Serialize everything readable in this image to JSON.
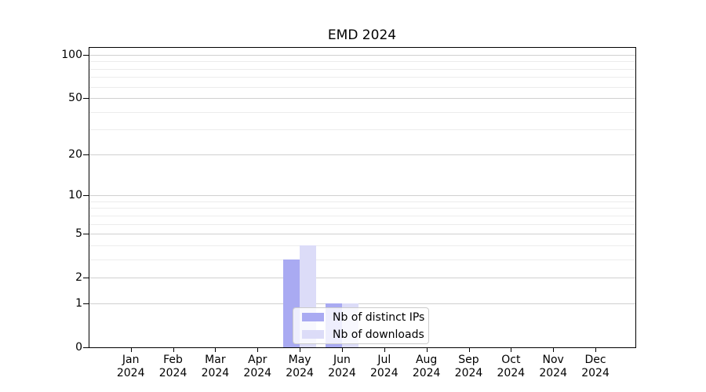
{
  "chart_data": {
    "type": "bar",
    "title": "EMD 2024",
    "categories": [
      "Jan",
      "Feb",
      "Mar",
      "Apr",
      "May",
      "Jun",
      "Jul",
      "Aug",
      "Sep",
      "Oct",
      "Nov",
      "Dec"
    ],
    "category_year": "2024",
    "series": [
      {
        "name": "Nb of distinct IPs",
        "color": "#a9aaf2",
        "values": [
          0,
          0,
          0,
          0,
          3,
          1,
          0,
          0,
          0,
          0,
          0,
          0
        ]
      },
      {
        "name": "Nb of downloads",
        "color": "#dcdcf8",
        "values": [
          0,
          0,
          0,
          0,
          4,
          1,
          0,
          0,
          0,
          0,
          0,
          0
        ]
      }
    ],
    "y_axis": {
      "scale": "log10(1+v)",
      "major_ticks": [
        0,
        1,
        2,
        5,
        10,
        20,
        50,
        100
      ],
      "minor_ticks": [
        3,
        4,
        6,
        7,
        8,
        9,
        30,
        40,
        60,
        70,
        80,
        90
      ],
      "range": [
        0,
        100
      ]
    },
    "x_axis": {
      "tick_label_lines": 2
    },
    "grid": "on",
    "legend": {
      "position": "lower center",
      "entries": [
        "Nb of distinct IPs",
        "Nb of downloads"
      ]
    },
    "colors": {
      "major_grid": "#d0d0d0",
      "minor_grid": "#ececec",
      "spine": "#000000",
      "text": "#000000",
      "legend_border": "#cccccc"
    }
  }
}
